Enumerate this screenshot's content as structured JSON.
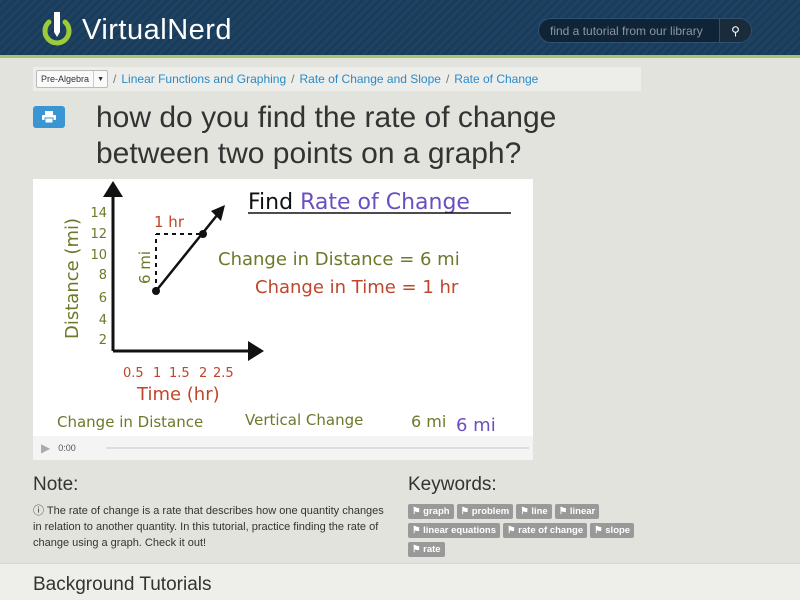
{
  "header": {
    "logo_part1": "Virtual",
    "logo_part2": "Nerd",
    "search_placeholder": "find a tutorial from our library",
    "search_icon": "magnifier"
  },
  "breadcrumb": {
    "subject": "Pre-Algebra",
    "items": [
      "Linear Functions and Graphing",
      "Rate of Change and Slope",
      "Rate of Change"
    ]
  },
  "title": "how do you find the rate of change between two points on a graph?",
  "video": {
    "heading_black": "Find",
    "heading_purple": "Rate of Change",
    "y_label": "Distance (mi)",
    "x_label": "Time (hr)",
    "y_ticks": [
      "2",
      "4",
      "6",
      "8",
      "10",
      "12",
      "14"
    ],
    "x_ticks": [
      "0.5",
      "1",
      "1.5",
      "2",
      "2.5"
    ],
    "run_label": "1 hr",
    "rise_label": "6 mi",
    "line1": "Change in Distance = 6 mi",
    "line2": "Change in Time = 1 hr",
    "bottom1": "Change in Distance",
    "bottom2": "Vertical Change",
    "bottom3": "6 mi",
    "bottom4": "6 mi",
    "time": "0:00"
  },
  "note": {
    "heading": "Note:",
    "text": "The rate of change is a rate that describes how one quantity changes in relation to another quantity. In this tutorial, practice finding the rate of change using a graph. Check it out!"
  },
  "keywords": {
    "heading": "Keywords:",
    "tags": [
      "graph",
      "problem",
      "line",
      "linear",
      "linear equations",
      "rate of change",
      "slope",
      "rate"
    ]
  },
  "background": {
    "heading": "Background Tutorials"
  },
  "colors": {
    "header": "#1a3c5a",
    "accent_green": "#a9c46a",
    "link": "#2a8ac8",
    "print_button": "#3a95d3"
  }
}
